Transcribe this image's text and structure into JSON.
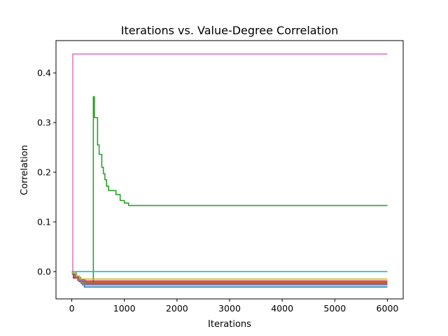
{
  "chart_data": {
    "type": "line",
    "title": "Iterations vs. Value-Degree Correlation",
    "xlabel": "Iterations",
    "ylabel": "Correlation",
    "xlim": [
      -300,
      6300
    ],
    "ylim": [
      -0.055,
      0.465
    ],
    "xticks": [
      0,
      1000,
      2000,
      3000,
      4000,
      5000,
      6000
    ],
    "yticks": [
      0.0,
      0.1,
      0.2,
      0.3,
      0.4
    ],
    "ytick_labels": [
      "0.0",
      "0.1",
      "0.2",
      "0.3",
      "0.4"
    ],
    "grid": false,
    "legend": "none",
    "series": [
      {
        "color": "#1f77b4",
        "points": [
          [
            0,
            -0.005
          ],
          [
            40,
            -0.012
          ],
          [
            110,
            -0.018
          ],
          [
            180,
            -0.024
          ],
          [
            240,
            -0.031
          ],
          [
            6000,
            -0.031
          ]
        ]
      },
      {
        "color": "#ff7f0e",
        "points": [
          [
            0,
            -0.004
          ],
          [
            50,
            -0.01
          ],
          [
            110,
            -0.017
          ],
          [
            160,
            -0.021
          ],
          [
            6000,
            -0.021
          ]
        ]
      },
      {
        "color": "#2ca02c",
        "points": [
          [
            0,
            -0.004
          ],
          [
            60,
            -0.012
          ],
          [
            140,
            -0.02
          ],
          [
            240,
            -0.025
          ],
          [
            390,
            -0.025
          ],
          [
            410,
            0.352
          ],
          [
            430,
            0.31
          ],
          [
            490,
            0.255
          ],
          [
            520,
            0.236
          ],
          [
            570,
            0.21
          ],
          [
            600,
            0.197
          ],
          [
            630,
            0.185
          ],
          [
            660,
            0.172
          ],
          [
            700,
            0.163
          ],
          [
            810,
            0.163
          ],
          [
            840,
            0.155
          ],
          [
            900,
            0.155
          ],
          [
            920,
            0.143
          ],
          [
            980,
            0.143
          ],
          [
            1000,
            0.138
          ],
          [
            1050,
            0.138
          ],
          [
            1080,
            0.133
          ],
          [
            6000,
            0.133
          ]
        ]
      },
      {
        "color": "#d62728",
        "points": [
          [
            0,
            -0.003
          ],
          [
            30,
            -0.013
          ],
          [
            130,
            -0.015
          ],
          [
            160,
            -0.019
          ],
          [
            6000,
            -0.019
          ]
        ]
      },
      {
        "color": "#9467bd",
        "points": [
          [
            0,
            -0.004
          ],
          [
            60,
            -0.011
          ],
          [
            130,
            -0.018
          ],
          [
            200,
            -0.027
          ],
          [
            6000,
            -0.027
          ]
        ]
      },
      {
        "color": "#8c564b",
        "points": [
          [
            0,
            -0.004
          ],
          [
            70,
            -0.01
          ],
          [
            140,
            -0.016
          ],
          [
            250,
            -0.023
          ],
          [
            6000,
            -0.023
          ]
        ]
      },
      {
        "color": "#e377c2",
        "points": [
          [
            0,
            -0.001
          ],
          [
            20,
            0.438
          ],
          [
            6000,
            0.438
          ]
        ]
      },
      {
        "color": "#7f7f7f",
        "points": [
          [
            0,
            -0.003
          ],
          [
            90,
            -0.012
          ],
          [
            170,
            -0.021
          ],
          [
            260,
            -0.025
          ],
          [
            6000,
            -0.025
          ]
        ]
      },
      {
        "color": "#bcbd22",
        "points": [
          [
            0,
            -0.003
          ],
          [
            80,
            -0.009
          ],
          [
            150,
            -0.015
          ],
          [
            220,
            -0.015
          ],
          [
            6000,
            -0.015
          ]
        ]
      },
      {
        "color": "#17becf",
        "points": [
          [
            0,
            0.0
          ],
          [
            6000,
            0.0
          ]
        ]
      }
    ]
  }
}
